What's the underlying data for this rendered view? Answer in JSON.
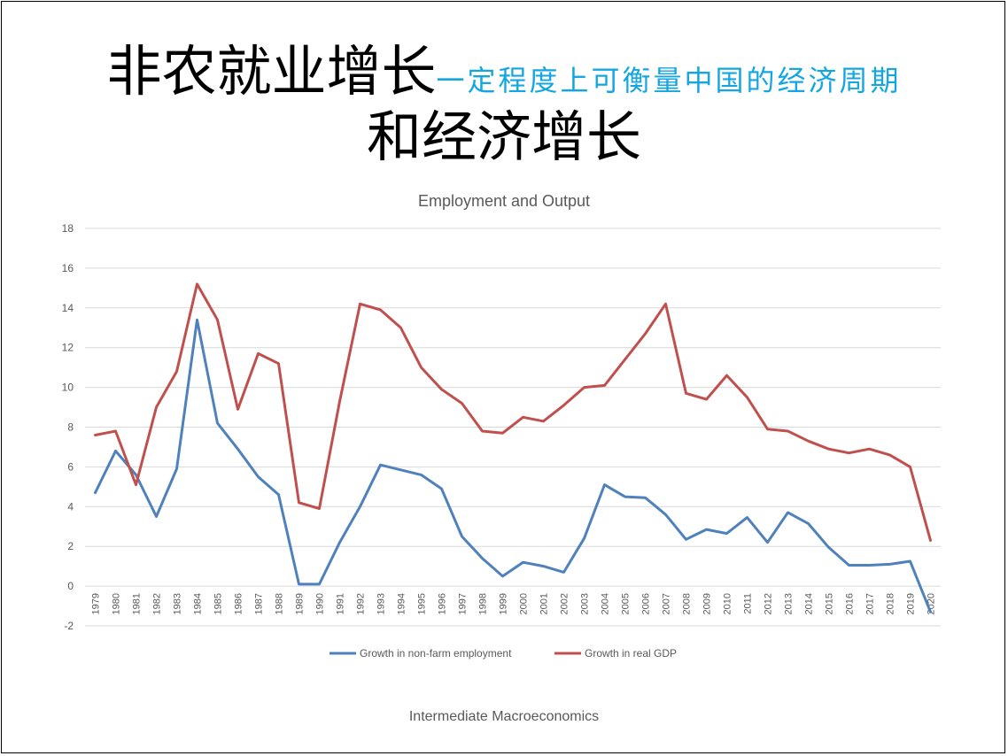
{
  "slide": {
    "title_main": "非农就业增长",
    "title_sub": "一定程度上可衡量中国的经济周期",
    "title_line2": "和经济增长",
    "footer": "Intermediate Macroeconomics"
  },
  "colors": {
    "employment": "#4f81bd",
    "gdp": "#c0504d",
    "gridline": "#d9d9d9",
    "axis_text": "#595959",
    "subtitle": "#14a6e0"
  },
  "chart_data": {
    "type": "line",
    "title": "Employment and Output",
    "xlabel": "",
    "ylabel": "",
    "ylim": [
      -2,
      18
    ],
    "yticks": [
      "18",
      "16",
      "14",
      "12",
      "10",
      "8",
      "6",
      "4",
      "2",
      "0",
      "-2"
    ],
    "grid": true,
    "legend_position": "bottom",
    "categories": [
      "1979",
      "1980",
      "1981",
      "1982",
      "1983",
      "1984",
      "1985",
      "1986",
      "1987",
      "1988",
      "1989",
      "1990",
      "1991",
      "1992",
      "1993",
      "1994",
      "1995",
      "1996",
      "1997",
      "1998",
      "1999",
      "2000",
      "2001",
      "2002",
      "2003",
      "2004",
      "2005",
      "2006",
      "2007",
      "2008",
      "2009",
      "2010",
      "2011",
      "2012",
      "2013",
      "2014",
      "2015",
      "2016",
      "2017",
      "2018",
      "2019",
      "2020"
    ],
    "series": [
      {
        "name": "Growth in non-farm employment",
        "color": "#4f81bd",
        "values": [
          4.7,
          6.8,
          5.6,
          3.5,
          5.9,
          13.4,
          8.2,
          6.9,
          5.5,
          4.6,
          0.1,
          0.1,
          2.2,
          4.0,
          6.1,
          5.85,
          5.6,
          4.9,
          2.5,
          1.4,
          0.5,
          1.2,
          1.0,
          0.7,
          2.4,
          5.1,
          4.5,
          4.45,
          3.6,
          2.35,
          2.85,
          2.65,
          3.45,
          2.2,
          3.7,
          3.15,
          1.95,
          1.05,
          1.05,
          1.1,
          1.25,
          -1.3
        ]
      },
      {
        "name": "Growth in real GDP",
        "color": "#c0504d",
        "values": [
          7.6,
          7.8,
          5.1,
          9.0,
          10.8,
          15.2,
          13.4,
          8.9,
          11.7,
          11.2,
          4.2,
          3.9,
          9.3,
          14.2,
          13.9,
          13.0,
          11.0,
          9.9,
          9.2,
          7.8,
          7.7,
          8.5,
          8.3,
          9.1,
          10.0,
          10.1,
          11.4,
          12.7,
          14.2,
          9.7,
          9.4,
          10.6,
          9.5,
          7.9,
          7.8,
          7.3,
          6.9,
          6.7,
          6.9,
          6.6,
          6.0,
          2.3
        ]
      }
    ]
  }
}
